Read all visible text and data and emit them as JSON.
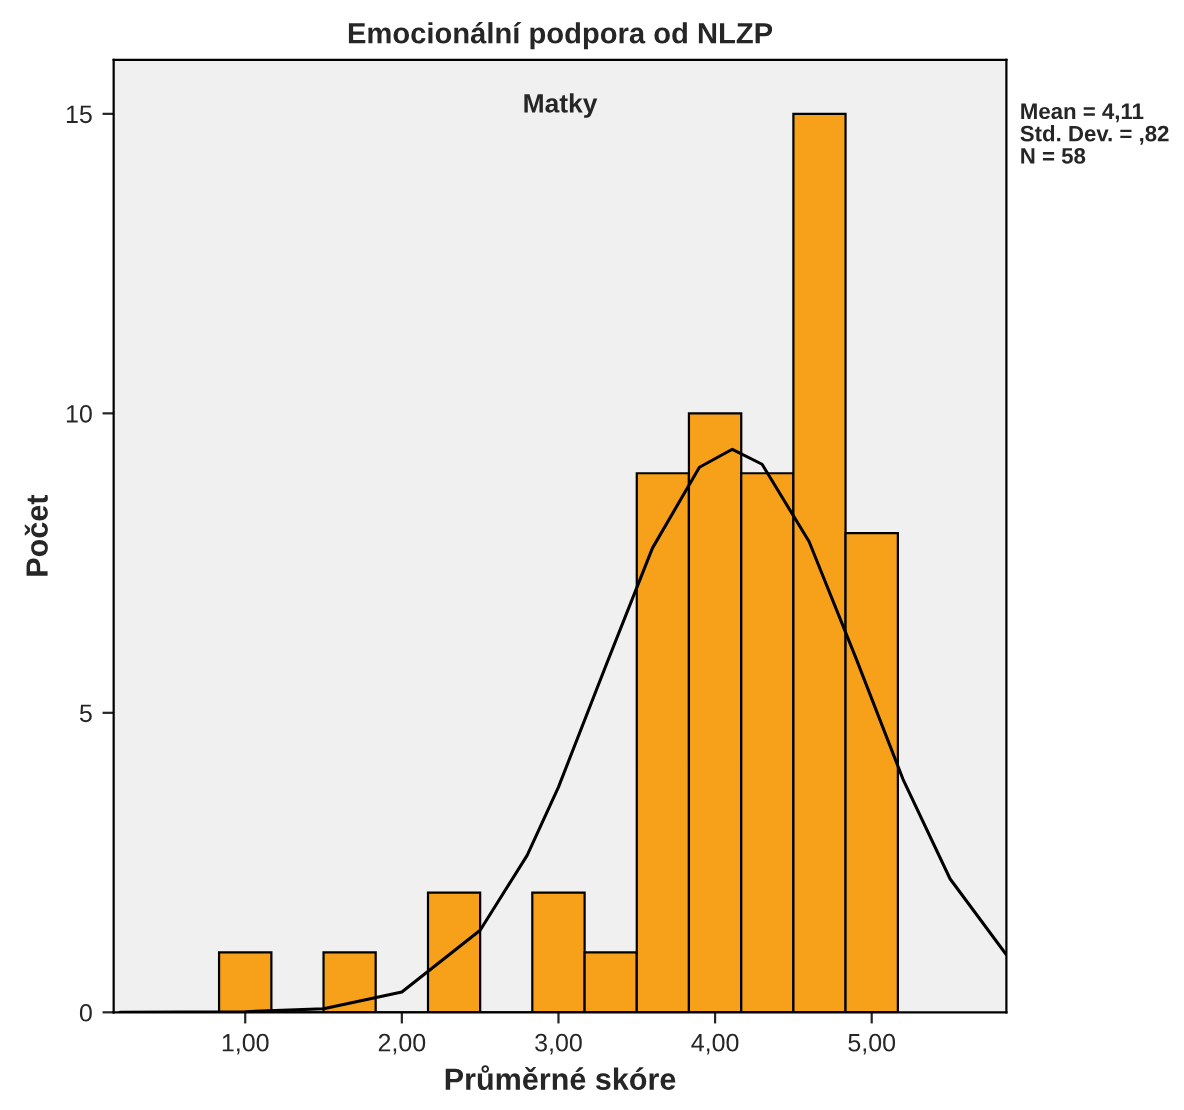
{
  "chart_data": {
    "type": "histogram",
    "title": "Emocionální podpora od NLZP",
    "xlabel": "Průměrné skóre",
    "ylabel": "Počet",
    "annotations": [
      "Matky",
      "Mean = 4,11\nStd. Dev. = ,82\nN = 58"
    ],
    "series": [
      {
        "color": "#f7a11a",
        "bins": [
          0.833,
          1.167,
          1.5,
          1.833,
          2.167,
          2.5,
          2.833,
          3.167,
          3.5,
          3.833,
          4.167,
          4.5,
          4.833,
          5.167
        ],
        "values": [
          1,
          0,
          1,
          0,
          2,
          0,
          2,
          1,
          9,
          10,
          9,
          15,
          8
        ]
      },
      {
        "type": "line",
        "color": "#000000",
        "x": [
          0.2,
          1.0,
          1.5,
          2.0,
          2.5,
          2.8,
          3.0,
          3.3,
          3.6,
          3.9,
          4.11,
          4.3,
          4.6,
          4.9,
          5.2,
          5.5,
          5.86
        ],
        "values": [
          0.0,
          0.01,
          0.06,
          0.34,
          1.37,
          2.62,
          3.76,
          5.77,
          7.75,
          9.1,
          9.4,
          9.15,
          7.86,
          5.91,
          3.89,
          2.23,
          0.96
        ]
      }
    ],
    "xlim": [
      0.16,
      5.86
    ],
    "xticks": [
      {
        "value": 1,
        "label": "1,00"
      },
      {
        "value": 2,
        "label": "2,00"
      },
      {
        "value": 3,
        "label": "3,00"
      },
      {
        "value": 4,
        "label": "4,00"
      },
      {
        "value": 5,
        "label": "5,00"
      }
    ],
    "ylim": [
      0,
      15.9
    ],
    "yticks": [
      0,
      5,
      10,
      15
    ],
    "grid": false,
    "legend": false
  }
}
